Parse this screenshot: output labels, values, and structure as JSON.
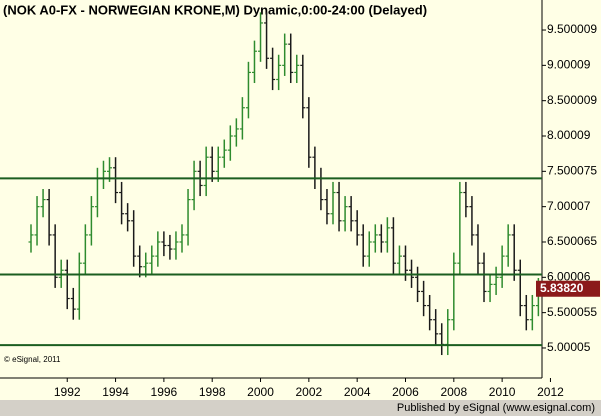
{
  "chart_data": {
    "type": "ohlc",
    "title": "(NOK A0-FX - NORWEGIAN KRONE,M) Dynamic,0:00-24:00 (Delayed)",
    "copyright": "© eSignal, 2011",
    "footer": "Published by eSignal (www.esignal.com)",
    "x": [
      1990.5,
      1990.75,
      1991,
      1991.25,
      1991.5,
      1991.75,
      1992,
      1992.25,
      1992.5,
      1992.75,
      1993,
      1993.25,
      1993.5,
      1993.75,
      1994,
      1994.25,
      1994.5,
      1994.75,
      1995,
      1995.25,
      1995.5,
      1995.75,
      1996,
      1996.25,
      1996.5,
      1996.75,
      1997,
      1997.25,
      1997.5,
      1997.75,
      1998,
      1998.25,
      1998.5,
      1998.75,
      1999,
      1999.25,
      1999.5,
      1999.75,
      2000,
      2000.25,
      2000.5,
      2000.75,
      2001,
      2001.25,
      2001.5,
      2001.75,
      2002,
      2002.25,
      2002.5,
      2002.75,
      2003,
      2003.25,
      2003.5,
      2003.75,
      2004,
      2004.25,
      2004.5,
      2004.75,
      2005,
      2005.25,
      2005.5,
      2005.75,
      2006,
      2006.25,
      2006.5,
      2006.75,
      2007,
      2007.25,
      2007.5,
      2007.75,
      2008,
      2008.25,
      2008.5,
      2008.75,
      2009,
      2009.25,
      2009.5,
      2009.75,
      2010,
      2010.25,
      2010.5,
      2010.75,
      2011,
      2011.25,
      2011.5
    ],
    "open": [
      6.5,
      6.6,
      7.0,
      7.1,
      6.6,
      6.0,
      6.1,
      5.7,
      5.55,
      6.2,
      6.6,
      7.0,
      7.4,
      7.5,
      7.55,
      7.2,
      6.9,
      6.8,
      6.3,
      6.15,
      6.2,
      6.3,
      6.5,
      6.45,
      6.4,
      6.5,
      6.6,
      7.1,
      7.5,
      7.3,
      7.7,
      7.5,
      7.7,
      7.8,
      8.0,
      8.1,
      8.4,
      8.9,
      9.2,
      9.6,
      9.1,
      8.8,
      9.0,
      9.3,
      8.9,
      9.0,
      8.4,
      7.7,
      7.4,
      7.1,
      6.9,
      7.2,
      6.8,
      7.0,
      6.8,
      6.6,
      6.3,
      6.5,
      6.6,
      6.5,
      6.7,
      6.2,
      6.3,
      6.1,
      6.0,
      5.8,
      5.6,
      5.4,
      5.2,
      5.05,
      5.4,
      6.2,
      7.2,
      7.0,
      6.6,
      6.2,
      5.8,
      5.9,
      6.0,
      6.3,
      6.6,
      6.1,
      5.6,
      5.4,
      5.6
    ],
    "high": [
      6.75,
      7.15,
      7.25,
      7.25,
      6.75,
      6.25,
      6.25,
      5.85,
      6.35,
      6.75,
      7.15,
      7.55,
      7.65,
      7.7,
      7.7,
      7.35,
      7.05,
      6.95,
      6.45,
      6.35,
      6.45,
      6.65,
      6.65,
      6.6,
      6.65,
      6.75,
      7.25,
      7.65,
      7.65,
      7.85,
      7.85,
      7.85,
      7.95,
      8.15,
      8.25,
      8.55,
      9.05,
      9.35,
      9.75,
      9.75,
      9.25,
      9.15,
      9.45,
      9.45,
      9.15,
      9.15,
      8.55,
      7.85,
      7.55,
      7.25,
      7.35,
      7.35,
      7.15,
      7.15,
      6.95,
      6.75,
      6.65,
      6.75,
      6.75,
      6.85,
      6.85,
      6.45,
      6.45,
      6.25,
      6.15,
      5.95,
      5.75,
      5.55,
      5.35,
      5.55,
      6.35,
      7.35,
      7.35,
      7.15,
      6.75,
      6.35,
      6.05,
      6.15,
      6.45,
      6.75,
      6.75,
      6.25,
      5.75,
      5.75,
      5.99
    ],
    "low": [
      6.35,
      6.45,
      6.85,
      6.45,
      5.85,
      5.85,
      5.55,
      5.4,
      5.4,
      6.05,
      6.45,
      6.85,
      7.25,
      7.35,
      7.05,
      6.75,
      6.65,
      6.15,
      6.0,
      6.0,
      6.05,
      6.15,
      6.3,
      6.25,
      6.25,
      6.35,
      6.45,
      6.95,
      7.15,
      7.15,
      7.35,
      7.35,
      7.55,
      7.65,
      7.85,
      7.95,
      8.25,
      8.75,
      9.05,
      8.95,
      8.65,
      8.65,
      8.85,
      8.75,
      8.75,
      8.25,
      7.55,
      7.25,
      6.95,
      6.75,
      6.75,
      6.65,
      6.65,
      6.65,
      6.45,
      6.15,
      6.15,
      6.35,
      6.35,
      6.35,
      6.05,
      6.05,
      5.95,
      5.85,
      5.65,
      5.45,
      5.25,
      5.05,
      4.9,
      4.9,
      5.25,
      6.05,
      6.85,
      6.45,
      6.05,
      5.65,
      5.65,
      5.75,
      5.85,
      6.15,
      5.95,
      5.45,
      5.25,
      5.25,
      5.45
    ],
    "close": [
      6.6,
      7.0,
      7.1,
      6.6,
      6.0,
      6.1,
      5.7,
      5.55,
      6.2,
      6.6,
      7.0,
      7.4,
      7.5,
      7.55,
      7.2,
      6.9,
      6.8,
      6.3,
      6.15,
      6.2,
      6.3,
      6.5,
      6.45,
      6.4,
      6.5,
      6.6,
      7.1,
      7.5,
      7.3,
      7.7,
      7.5,
      7.7,
      7.8,
      8.0,
      8.1,
      8.4,
      8.9,
      9.2,
      9.6,
      9.1,
      8.8,
      9.0,
      9.3,
      8.9,
      9.0,
      8.4,
      7.7,
      7.4,
      7.1,
      6.9,
      7.2,
      6.8,
      7.0,
      6.8,
      6.6,
      6.3,
      6.5,
      6.6,
      6.5,
      6.7,
      6.2,
      6.3,
      6.1,
      6.0,
      5.8,
      5.6,
      5.4,
      5.2,
      5.05,
      5.4,
      6.2,
      7.2,
      7.0,
      6.6,
      6.2,
      5.8,
      5.9,
      6.0,
      6.3,
      6.6,
      6.1,
      5.6,
      5.4,
      5.6,
      5.84
    ],
    "up_color": "#2e8b2e",
    "down_color": "#1a1a1a",
    "hlines": [
      7.4,
      6.04,
      5.04
    ],
    "hline_color": "#1b5e20",
    "last_price": {
      "value": 5.8382,
      "label": "5.83820"
    },
    "last_price_color": "#8b1a1a",
    "xlim": [
      1989.3,
      2011.65
    ],
    "xticks": [
      1992,
      1994,
      1996,
      1998,
      2000,
      2002,
      2004,
      2006,
      2008,
      2010,
      2012
    ],
    "ylim": [
      4.575,
      9.925
    ],
    "yticks": [
      9.500009,
      9.00009,
      8.500009,
      8.00009,
      7.500075,
      7.00007,
      6.500065,
      6.00006,
      5.500055,
      5.00005
    ]
  }
}
